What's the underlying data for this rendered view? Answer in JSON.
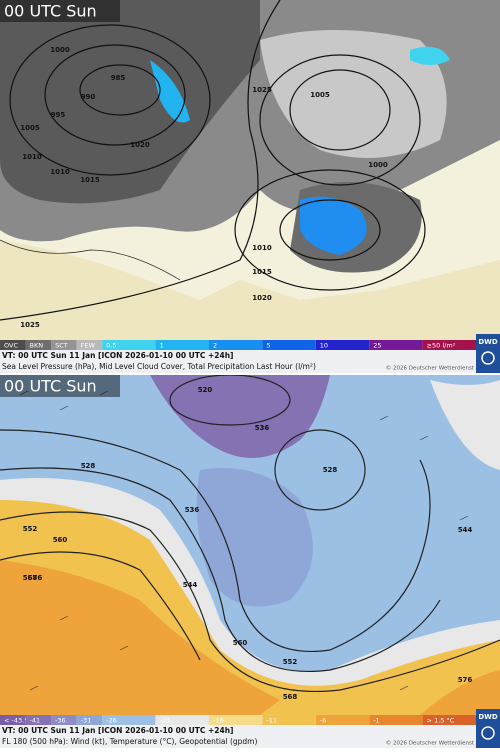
{
  "panels": [
    {
      "title": "00 UTC Sun",
      "legend": [
        {
          "label": "OVC",
          "color": "#4d4d4d"
        },
        {
          "label": "BKN",
          "color": "#6e6e6e"
        },
        {
          "label": "SCT",
          "color": "#939393"
        },
        {
          "label": "FEW",
          "color": "#b9b9b9"
        },
        {
          "label": "0.5",
          "color": "#3fd3ee"
        },
        {
          "label": "1",
          "color": "#21b4f0"
        },
        {
          "label": "2",
          "color": "#178ff0"
        },
        {
          "label": "5",
          "color": "#0f63e6"
        },
        {
          "label": "10",
          "color": "#2424cf"
        },
        {
          "label": "25",
          "color": "#751a96"
        },
        {
          "label": "≥50 l/m²",
          "color": "#a3124c"
        }
      ],
      "valid_time": "VT: 00 UTC Sun  11 Jan [ICON 2026-01-10 00 UTC +24h]",
      "description": "Sea Level Pressure (hPa), Mid Level Cloud Cover, Total Precipitation Last Hour (l/m²)",
      "copyright": "© 2026 Deutscher Wetterdienst",
      "logo": "DWD",
      "contour_labels": [
        "1000",
        "985",
        "990",
        "995",
        "1005",
        "1010",
        "1010",
        "1015",
        "1020",
        "1025",
        "1005",
        "1000",
        "1010",
        "1015",
        "1020",
        "1025"
      ]
    },
    {
      "title": "00 UTC Sun",
      "legend": [
        {
          "label": "< -43.5",
          "color": "#7a5ea8"
        },
        {
          "label": "-41",
          "color": "#8472b3"
        },
        {
          "label": "-36",
          "color": "#8f8bc4"
        },
        {
          "label": "-31",
          "color": "#8fa7d6"
        },
        {
          "label": "-26",
          "color": "#9cc0e4"
        },
        {
          "label": "-21",
          "color": "#e8e8e8"
        },
        {
          "label": "-16",
          "color": "#f6dc8a"
        },
        {
          "label": "-11",
          "color": "#f2c24f"
        },
        {
          "label": "-6",
          "color": "#eea43a"
        },
        {
          "label": "-1",
          "color": "#e8862e"
        },
        {
          "label": "> 1.5 °C",
          "color": "#d9622a"
        }
      ],
      "valid_time": "VT: 00 UTC Sun  11 Jan [ICON 2026-01-10 00 UTC +24h]",
      "description": "FL 180 (500 hPa): Wind (kt), Temperature (°C), Geopotential (gpdm)",
      "copyright": "© 2026 Deutscher Wetterdienst",
      "logo": "DWD",
      "contour_labels": [
        "520",
        "528",
        "536",
        "536",
        "544",
        "552",
        "560",
        "568",
        "576",
        "552",
        "560",
        "568",
        "576",
        "544",
        "528"
      ]
    }
  ]
}
